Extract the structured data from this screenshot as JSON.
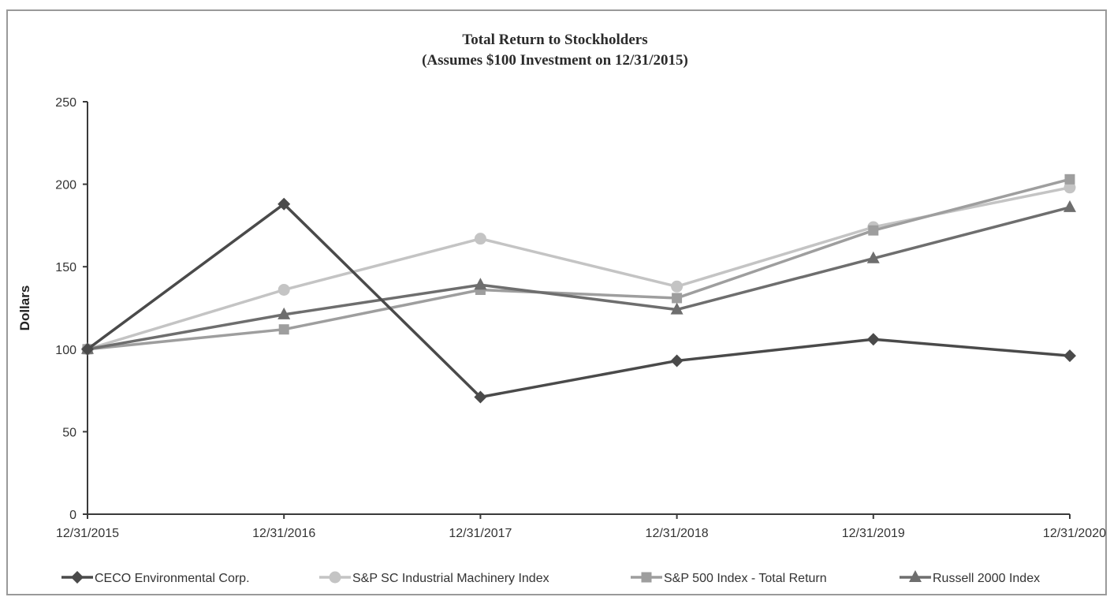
{
  "chart_data": {
    "type": "line",
    "title": "Total Return to Stockholders",
    "subtitle": "(Assumes $100 Investment on 12/31/2015)",
    "ylabel": "Dollars",
    "xlabel": "",
    "ylim": [
      0,
      250
    ],
    "yticks": [
      0,
      50,
      100,
      150,
      200,
      250
    ],
    "categories": [
      "12/31/2015",
      "12/31/2016",
      "12/31/2017",
      "12/31/2018",
      "12/31/2019",
      "12/31/2020"
    ],
    "grid": false,
    "legend_position": "bottom",
    "series": [
      {
        "name": "CECO Environmental Corp.",
        "marker": "diamond",
        "color": "#4a4a4a",
        "values": [
          100,
          188,
          71,
          93,
          106,
          96
        ]
      },
      {
        "name": "S&P SC Industrial Machinery Index",
        "marker": "circle",
        "color": "#c4c4c4",
        "values": [
          100,
          136,
          167,
          138,
          174,
          198
        ]
      },
      {
        "name": "S&P 500 Index - Total Return",
        "marker": "square",
        "color": "#9e9e9e",
        "values": [
          100,
          112,
          136,
          131,
          172,
          203
        ]
      },
      {
        "name": "Russell 2000 Index",
        "marker": "triangle",
        "color": "#6e6e6e",
        "values": [
          100,
          121,
          139,
          124,
          155,
          186
        ]
      }
    ]
  }
}
